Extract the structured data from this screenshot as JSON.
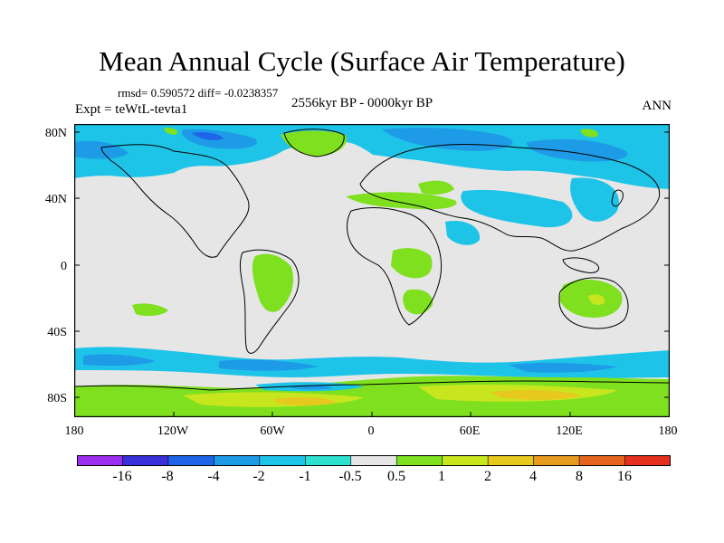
{
  "title": "Mean Annual Cycle (Surface Air Temperature)",
  "stats": "rmsd= 0.590572 diff= -0.0238357",
  "period": "2556kyr BP - 0000kyr BP",
  "experiment": "Expt = teWtL-tevta1",
  "season": "ANN",
  "lat_labels": [
    "80N",
    "40N",
    "0",
    "40S",
    "80S"
  ],
  "lon_labels": [
    "180",
    "120W",
    "60W",
    "0",
    "60E",
    "120E",
    "180"
  ],
  "colorbar": {
    "labels": [
      "-16",
      "-8",
      "-4",
      "-2",
      "-1",
      "-0.5",
      "0.5",
      "1",
      "2",
      "4",
      "8",
      "16"
    ],
    "colors": [
      "#9b30f0",
      "#3a2fd8",
      "#1e64e6",
      "#1e9be6",
      "#1ec4e8",
      "#2ee0d0",
      "#e6e6e6",
      "#7ee01e",
      "#c8e61e",
      "#e6c81e",
      "#e69a1e",
      "#e6641e",
      "#e6301e"
    ]
  },
  "map_colors": {
    "background": "#e6e6e6",
    "cool_1": "#1ec4e8",
    "cool_2": "#1e9be6",
    "cool_3": "#1e64e6",
    "warm_1": "#7ee01e",
    "warm_2": "#c8e61e",
    "warm_3": "#e6c81e"
  }
}
